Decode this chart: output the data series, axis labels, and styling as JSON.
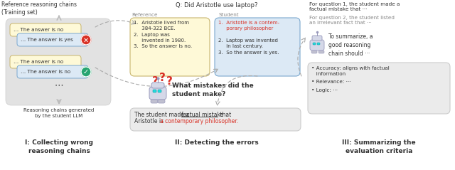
{
  "bg_color": "#ffffff",
  "box_yellow": "#fef9d7",
  "box_blue": "#dce9f5",
  "box_gray_panel": "#e2e2e2",
  "box_lightgray": "#ebebeb",
  "red_color": "#d93025",
  "green_color": "#26a570",
  "text_dark": "#333333",
  "text_gray": "#888888",
  "title1": "I: Collecting wrong\nreasoning chains",
  "title2": "II: Detecting the errors",
  "title3": "III: Summarizing the\nevaluation criteria",
  "ref_label": "Reference reasoning chains\n(Training set)",
  "chains_label": "Reasoning chains generated\nby the student LLM",
  "q_label": "Q: Did Aristotle use laptop?",
  "ref_box_label": "Reference",
  "student_box_label": "Student",
  "right_text1a": "For question 1, the student made a",
  "right_text1b": "factual mistake that ···",
  "right_text2a": "For question 2, the student listed",
  "right_text2b": "an irrelevant fact that ···",
  "summarize_text": "To summarize, a\ngood reasoning\nchain should ···",
  "criteria_text_line1": "• Accuracy: aligns with factual",
  "criteria_text_line2": "   information",
  "criteria_text_line3": "• Relevance: ···",
  "criteria_text_line4": "• Logic: ···"
}
